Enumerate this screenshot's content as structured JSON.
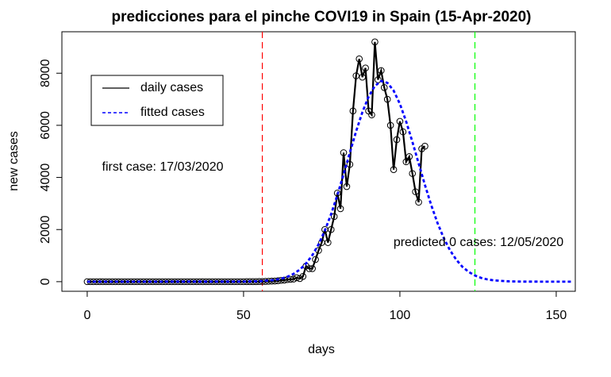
{
  "chart_data": {
    "type": "line",
    "title": "predicciones para el pinche COVI19 in Spain (15-Apr-2020)",
    "x_label": "days",
    "y_label": "new cases",
    "xlim": [
      -8.1,
      156.1
    ],
    "ylim": [
      -369,
      9591
    ],
    "xticks": [
      0,
      50,
      100,
      150
    ],
    "yticks": [
      0,
      2000,
      4000,
      6000,
      8000
    ],
    "legend": "top-left",
    "series": [
      {
        "name": "daily cases",
        "color": "#000000",
        "dashed": false,
        "markers": true,
        "x": [
          0,
          1,
          2,
          3,
          4,
          5,
          6,
          7,
          8,
          9,
          10,
          11,
          12,
          13,
          14,
          15,
          16,
          17,
          18,
          19,
          20,
          21,
          22,
          23,
          24,
          25,
          26,
          27,
          28,
          29,
          30,
          31,
          32,
          33,
          34,
          35,
          36,
          37,
          38,
          39,
          40,
          41,
          42,
          43,
          44,
          45,
          46,
          47,
          48,
          49,
          50,
          51,
          52,
          53,
          54,
          55,
          56,
          57,
          58,
          59,
          60,
          61,
          62,
          63,
          64,
          65,
          66,
          67,
          68,
          69,
          70,
          71,
          72,
          73,
          74,
          75,
          76,
          77,
          78,
          79,
          80,
          81,
          82,
          83,
          84,
          85,
          86,
          87,
          88,
          89,
          90,
          91,
          92,
          93,
          94,
          95,
          96,
          97,
          98,
          99,
          100,
          101,
          102,
          103,
          104,
          105,
          106,
          107,
          108
        ],
        "values": [
          0,
          0,
          0,
          0,
          0,
          0,
          0,
          0,
          0,
          0,
          0,
          0,
          0,
          0,
          0,
          0,
          0,
          0,
          0,
          0,
          0,
          0,
          0,
          0,
          0,
          0,
          0,
          0,
          0,
          0,
          0,
          0,
          0,
          0,
          0,
          0,
          0,
          0,
          0,
          0,
          0,
          0,
          0,
          0,
          0,
          0,
          0,
          0,
          0,
          0,
          0,
          1,
          1,
          2,
          3,
          5,
          8,
          10,
          15,
          20,
          25,
          35,
          50,
          60,
          80,
          90,
          100,
          150,
          120,
          200,
          600,
          500,
          500,
          850,
          1200,
          1500,
          2000,
          1500,
          2000,
          2500,
          3400,
          2800,
          4950,
          3650,
          4500,
          6550,
          7900,
          8550,
          7850,
          8200,
          6550,
          6400,
          9200,
          7750,
          8100,
          7450,
          7000,
          6000,
          4300,
          5450,
          6150,
          5750,
          4600,
          4800,
          4150,
          3450,
          3050,
          5100,
          5200
        ]
      },
      {
        "name": "fitted cases",
        "color": "#0000ff",
        "dashed": true,
        "markers": false,
        "x": [
          0,
          50,
          55,
          60,
          62,
          64,
          66,
          68,
          70,
          72,
          74,
          76,
          78,
          80,
          82,
          84,
          86,
          88,
          90,
          92,
          94,
          96,
          98,
          100,
          102,
          104,
          106,
          108,
          110,
          112,
          114,
          116,
          118,
          120,
          122,
          124,
          126,
          128,
          130,
          135,
          140,
          155
        ],
        "values": [
          0,
          3,
          15,
          66,
          113,
          187,
          299,
          464,
          698,
          1016,
          1434,
          1958,
          2592,
          3320,
          4122,
          4953,
          5768,
          6504,
          7101,
          7510,
          7700,
          7631,
          7332,
          6823,
          6149,
          5367,
          4538,
          3715,
          2946,
          2262,
          1682,
          1211,
          846,
          571,
          374,
          237,
          145,
          86,
          50,
          11,
          2,
          0
        ]
      }
    ],
    "vlines": [
      {
        "x": 56,
        "color": "#ff0000"
      },
      {
        "x": 124,
        "color": "#00ff00"
      }
    ],
    "annotations": [
      {
        "text": "first case: 17/03/2020",
        "color": "#ff0000"
      },
      {
        "text": "predicted 0 cases: 12/05/2020",
        "color": "#00ff00"
      }
    ]
  }
}
